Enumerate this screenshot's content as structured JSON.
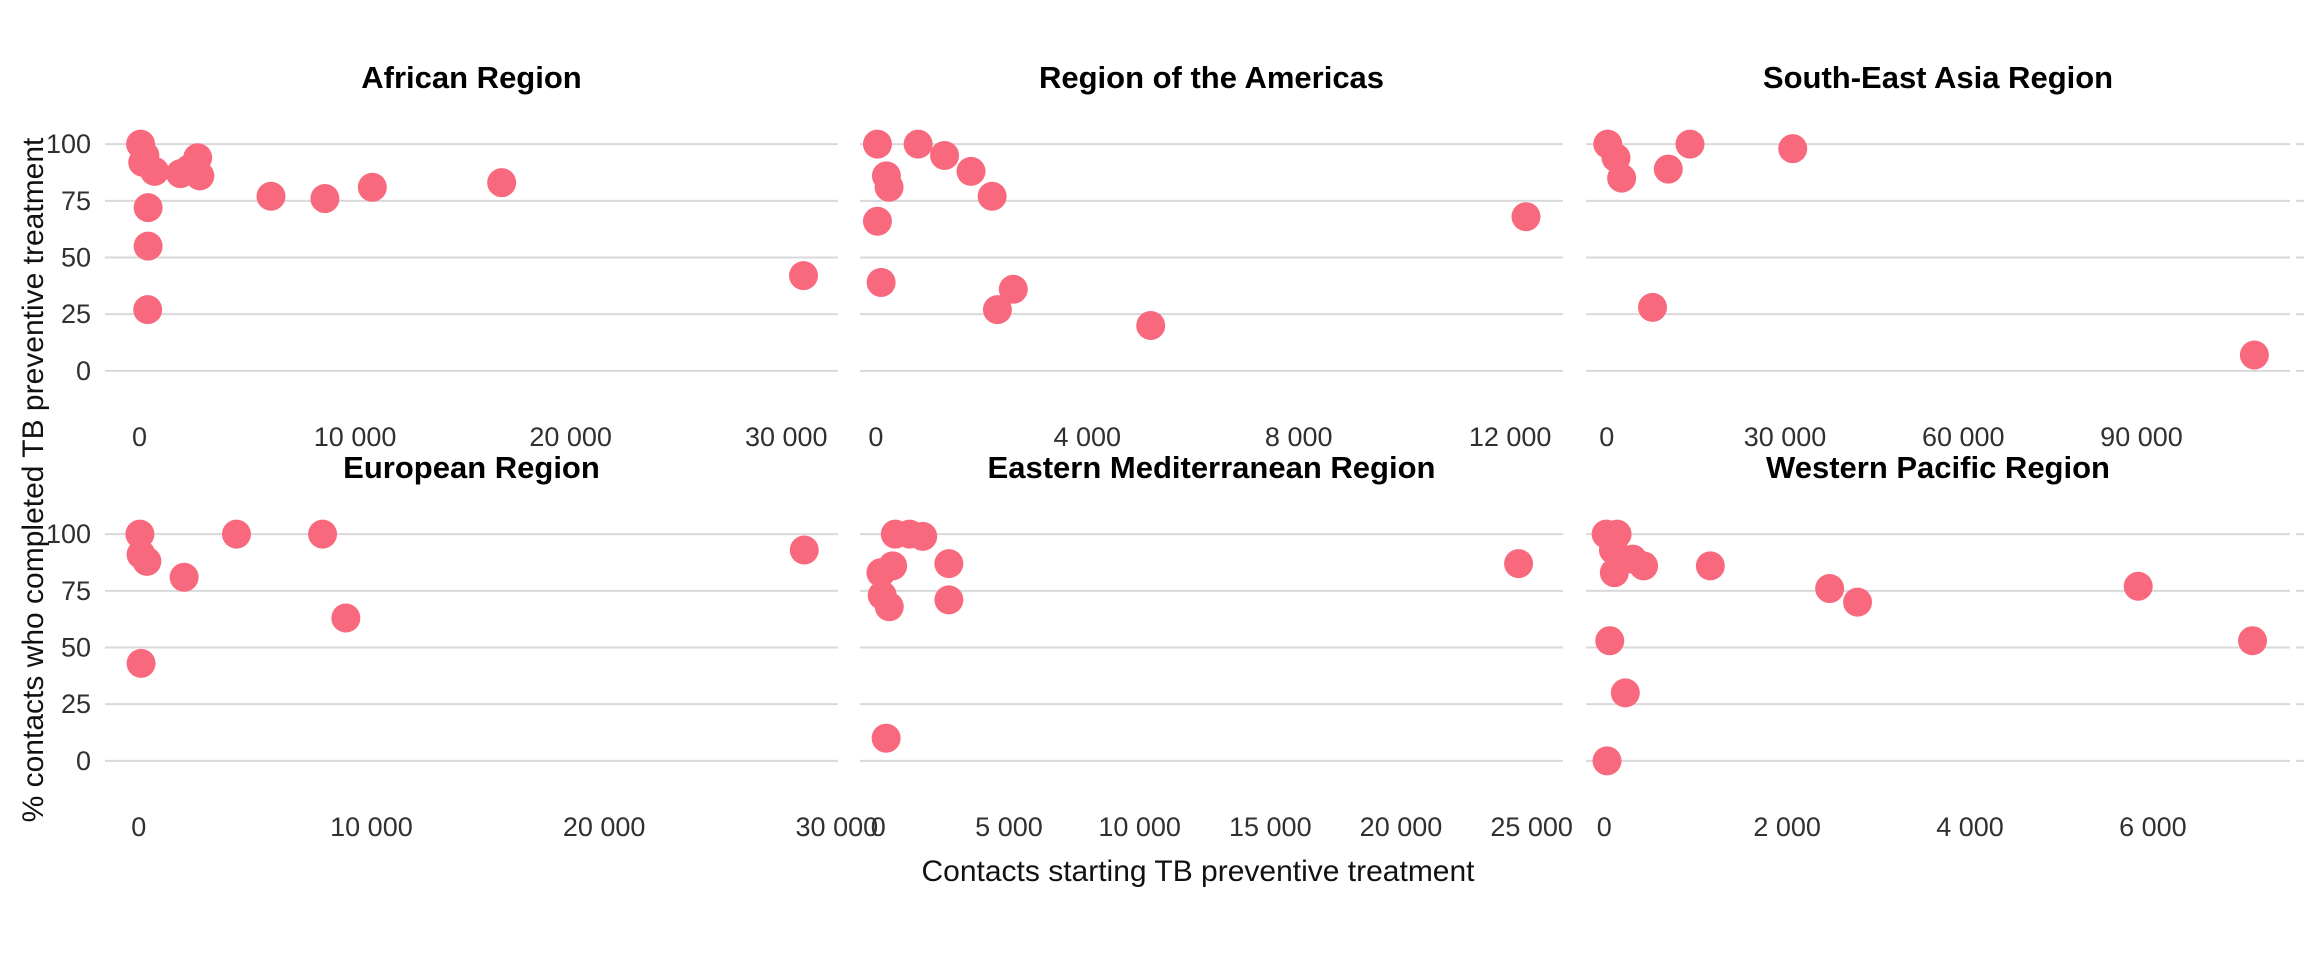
{
  "axes": {
    "x_label": "Contacts starting TB preventive treatment",
    "y_label": "% contacts who completed TB preventive treatment"
  },
  "colors": {
    "point": "#F8697E",
    "gridline": "#D9D9D9",
    "title_text": "#000000",
    "tick_text": "#303030",
    "background": "#FFFFFF"
  },
  "chart_meta": {
    "type": "scatter",
    "facets": "2 rows x 3 columns",
    "grid": "horizontal gridlines only",
    "legend": "none",
    "ylim": [
      -8,
      108
    ],
    "ytick_values": [
      0,
      25,
      50,
      75,
      100
    ],
    "ytick_labels": [
      "0",
      "25",
      "50",
      "75",
      "100"
    ]
  },
  "chart_data": [
    {
      "type": "scatter",
      "title": "African Region",
      "xlim": [
        -1600,
        32400
      ],
      "xtick_values": [
        0,
        10000,
        20000,
        30000
      ],
      "xtick_labels": [
        "0",
        "10 000",
        "20 000",
        "30 000"
      ],
      "points": [
        [
          50,
          100
        ],
        [
          250,
          95
        ],
        [
          150,
          92
        ],
        [
          700,
          88
        ],
        [
          1900,
          87
        ],
        [
          2300,
          89
        ],
        [
          2700,
          94
        ],
        [
          2800,
          86
        ],
        [
          400,
          72
        ],
        [
          400,
          55
        ],
        [
          380,
          27
        ],
        [
          6100,
          77
        ],
        [
          8600,
          76
        ],
        [
          10800,
          81
        ],
        [
          16800,
          83
        ],
        [
          30800,
          42
        ]
      ]
    },
    {
      "type": "scatter",
      "title": "Region of the Americas",
      "xlim": [
        -300,
        13000
      ],
      "xtick_values": [
        0,
        4000,
        8000,
        12000
      ],
      "xtick_labels": [
        "0",
        "4 000",
        "8 000",
        "12 000"
      ],
      "points": [
        [
          30,
          100
        ],
        [
          800,
          100
        ],
        [
          1300,
          95
        ],
        [
          1800,
          88
        ],
        [
          200,
          86
        ],
        [
          250,
          81
        ],
        [
          2200,
          77
        ],
        [
          30,
          66
        ],
        [
          100,
          39
        ],
        [
          2600,
          36
        ],
        [
          2300,
          27
        ],
        [
          5200,
          20
        ],
        [
          12300,
          68
        ]
      ]
    },
    {
      "type": "scatter",
      "title": "South-East Asia Region",
      "xlim": [
        -3500,
        115000
      ],
      "xtick_values": [
        0,
        30000,
        60000,
        90000
      ],
      "xtick_labels": [
        "0",
        "30 000",
        "60 000",
        "90 000"
      ],
      "points": [
        [
          165,
          100
        ],
        [
          1550,
          94
        ],
        [
          2500,
          85
        ],
        [
          7700,
          28
        ],
        [
          10350,
          89
        ],
        [
          14000,
          100
        ],
        [
          31300,
          98
        ],
        [
          109000,
          7
        ]
      ]
    },
    {
      "type": "scatter",
      "title": "European Region",
      "xlim": [
        -1450,
        30050
      ],
      "xtick_values": [
        0,
        10000,
        20000,
        30000
      ],
      "xtick_labels": [
        "0",
        "10 000",
        "20 000",
        "30 000"
      ],
      "points": [
        [
          50,
          100
        ],
        [
          100,
          91
        ],
        [
          350,
          88
        ],
        [
          1950,
          81
        ],
        [
          4200,
          100
        ],
        [
          7900,
          100
        ],
        [
          8900,
          63
        ],
        [
          100,
          43
        ],
        [
          28600,
          93
        ]
      ]
    },
    {
      "type": "scatter",
      "title": "Eastern Mediterranean Region",
      "xlim": [
        -700,
        26200
      ],
      "xtick_values": [
        0,
        5000,
        10000,
        15000,
        20000,
        25000
      ],
      "xtick_labels": [
        "0",
        "5 000",
        "10 000",
        "15 000",
        "20 000",
        "25 000"
      ],
      "points": [
        [
          650,
          100
        ],
        [
          1200,
          100
        ],
        [
          1700,
          99
        ],
        [
          100,
          83
        ],
        [
          550,
          86
        ],
        [
          2700,
          87
        ],
        [
          150,
          73
        ],
        [
          420,
          68
        ],
        [
          2700,
          71
        ],
        [
          300,
          10
        ],
        [
          24500,
          87
        ]
      ]
    },
    {
      "type": "scatter",
      "title": "Western Pacific Region",
      "xlim": [
        -200,
        7500
      ],
      "xtick_values": [
        0,
        2000,
        4000,
        6000
      ],
      "xtick_labels": [
        "0",
        "2 000",
        "4 000",
        "6 000"
      ],
      "points": [
        [
          20,
          100
        ],
        [
          140,
          100
        ],
        [
          100,
          93
        ],
        [
          110,
          83
        ],
        [
          310,
          89
        ],
        [
          430,
          86
        ],
        [
          1160,
          86
        ],
        [
          60,
          53
        ],
        [
          230,
          30
        ],
        [
          30,
          0
        ],
        [
          2465,
          76
        ],
        [
          2770,
          70
        ],
        [
          5840,
          77
        ],
        [
          7090,
          53
        ]
      ]
    }
  ]
}
